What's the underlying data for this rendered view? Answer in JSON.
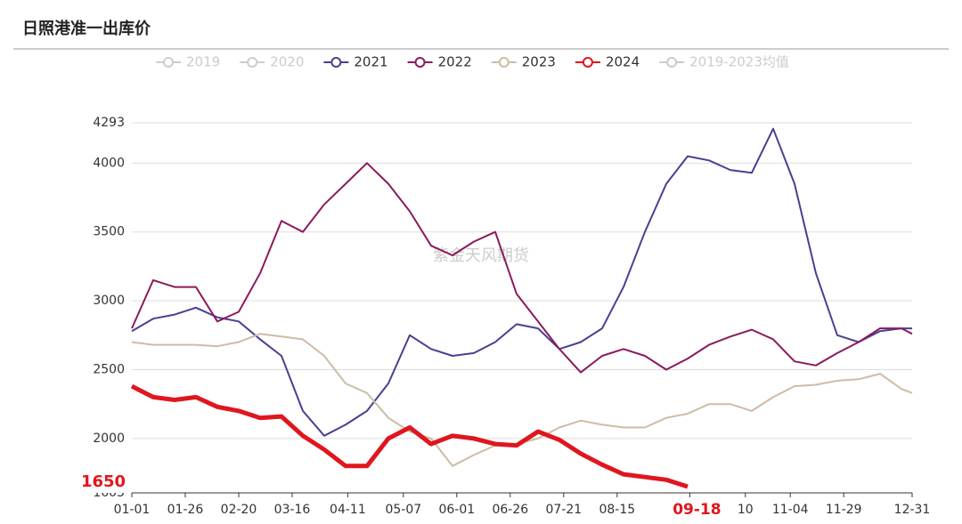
{
  "chart_data": {
    "type": "line",
    "title": "日照港准一出库价",
    "watermark": "紫金天风期货",
    "annotation": "1650",
    "xlim": [
      0,
      365
    ],
    "xticks": [
      {
        "value": 0,
        "label": "01-01"
      },
      {
        "value": 25,
        "label": "01-26"
      },
      {
        "value": 50,
        "label": "02-20"
      },
      {
        "value": 75,
        "label": "03-16"
      },
      {
        "value": 101,
        "label": "04-11"
      },
      {
        "value": 127,
        "label": "05-07"
      },
      {
        "value": 152,
        "label": "06-01"
      },
      {
        "value": 177,
        "label": "06-26"
      },
      {
        "value": 202,
        "label": "07-21"
      },
      {
        "value": 227,
        "label": "08-15"
      },
      {
        "value": 261,
        "label": "09-18"
      },
      {
        "value": 287,
        "label": "10"
      },
      {
        "value": 308,
        "label": "11-04"
      },
      {
        "value": 333,
        "label": "11-29"
      },
      {
        "value": 365,
        "label": "12-31"
      }
    ],
    "highlight_xtick": 10,
    "ylim": [
      1605,
      4293
    ],
    "yticks": [
      1605,
      2000,
      2500,
      3000,
      3500,
      4000,
      4293
    ],
    "grid": true,
    "x": [
      0,
      10,
      20,
      30,
      40,
      50,
      60,
      70,
      80,
      90,
      100,
      110,
      120,
      130,
      140,
      150,
      160,
      170,
      180,
      190,
      200,
      210,
      220,
      230,
      240,
      250,
      260,
      270,
      280,
      290,
      300,
      310,
      320,
      330,
      340,
      350,
      360,
      365
    ],
    "series": [
      {
        "name": "2019",
        "color": "#cccccc",
        "hidden": true
      },
      {
        "name": "2020",
        "color": "#cccccc",
        "hidden": true
      },
      {
        "name": "2021",
        "color": "#4b3f91",
        "values": [
          2780,
          2870,
          2900,
          2950,
          2880,
          2850,
          2720,
          2600,
          2200,
          2020,
          2100,
          2200,
          2400,
          2750,
          2650,
          2600,
          2620,
          2700,
          2830,
          2800,
          2650,
          2700,
          2800,
          3100,
          3500,
          3850,
          4050,
          4020,
          3950,
          3930,
          4250,
          3850,
          3200,
          2750,
          2700,
          2780,
          2800,
          2800
        ]
      },
      {
        "name": "2022",
        "color": "#8b1a5c",
        "values": [
          2800,
          3150,
          3100,
          3100,
          2850,
          2920,
          3200,
          3580,
          3500,
          3700,
          3850,
          4000,
          3850,
          3650,
          3400,
          3330,
          3430,
          3500,
          3050,
          2850,
          2650,
          2480,
          2600,
          2650,
          2600,
          2500,
          2580,
          2680,
          2740,
          2790,
          2720,
          2560,
          2530,
          2620,
          2700,
          2800,
          2800,
          2760
        ]
      },
      {
        "name": "2023",
        "color": "#cdbca5",
        "values": [
          2700,
          2680,
          2680,
          2680,
          2670,
          2700,
          2760,
          2740,
          2720,
          2600,
          2400,
          2330,
          2150,
          2050,
          2000,
          1800,
          1880,
          1950,
          1960,
          2000,
          2080,
          2130,
          2100,
          2080,
          2080,
          2150,
          2180,
          2250,
          2250,
          2200,
          2300,
          2380,
          2390,
          2420,
          2430,
          2470,
          2360,
          2330
        ]
      },
      {
        "name": "2024",
        "color": "#e0161e",
        "values": [
          2380,
          2300,
          2280,
          2300,
          2230,
          2200,
          2150,
          2160,
          2020,
          1920,
          1800,
          1800,
          2000,
          2080,
          1960,
          2020,
          2000,
          1960,
          1950,
          2050,
          1990,
          1890,
          1810,
          1740,
          1720,
          1700,
          1650,
          null,
          null,
          null,
          null,
          null,
          null,
          null,
          null,
          null,
          null,
          null
        ]
      },
      {
        "name": "2019-2023均值",
        "color": "#cccccc",
        "hidden": true
      }
    ]
  }
}
